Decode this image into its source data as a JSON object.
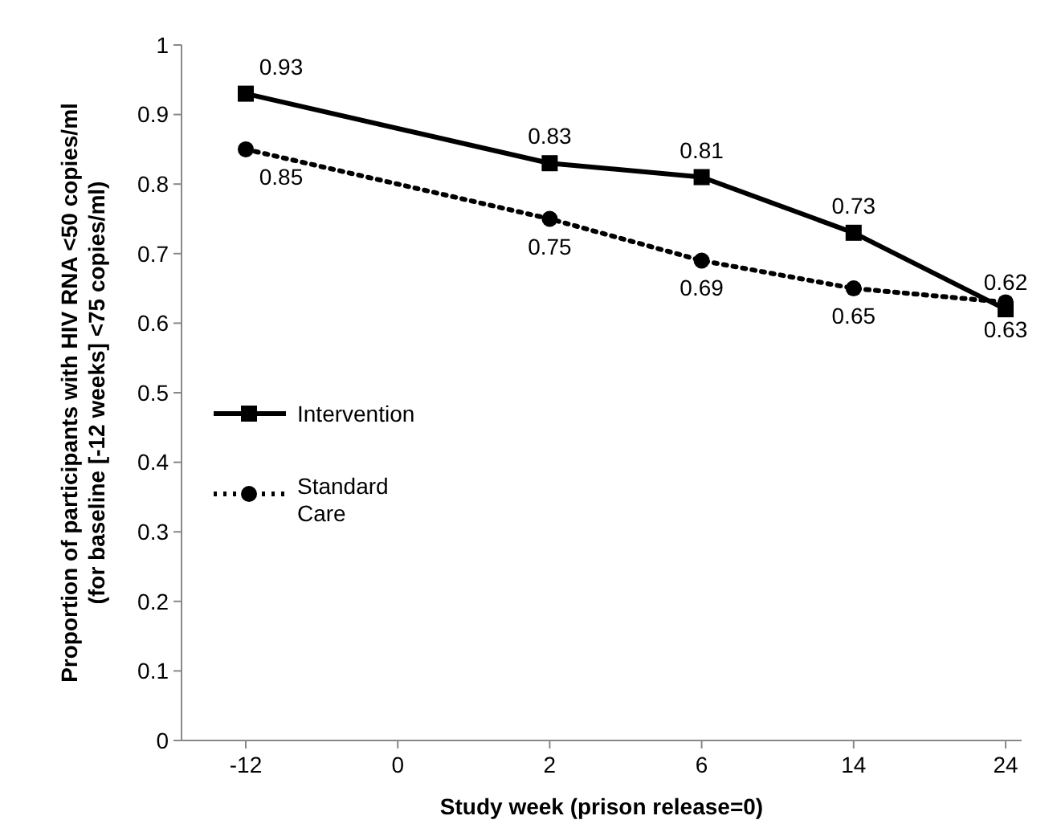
{
  "chart_data": {
    "type": "line",
    "xlabel": "Study week (prison release=0)",
    "ylabel": "Proportion of participants with HIV RNA <50 copies/ml (for baseline [-12 weeks] <75 copies/ml)",
    "categories": [
      "-12",
      "0",
      "2",
      "6",
      "14",
      "24"
    ],
    "series": [
      {
        "name": "Intervention",
        "color": "#000000",
        "values": [
          0.93,
          null,
          0.83,
          0.81,
          0.73,
          0.62
        ],
        "marker": "square",
        "line_style": "solid"
      },
      {
        "name": "Standard Care",
        "color": "#000000",
        "values": [
          0.85,
          null,
          0.75,
          0.69,
          0.65,
          0.63
        ],
        "marker": "circle",
        "line_style": "dotted"
      }
    ],
    "ylim": [
      0,
      1
    ],
    "yticks": [
      0,
      0.1,
      0.2,
      0.3,
      0.4,
      0.5,
      0.6,
      0.7,
      0.8,
      0.9,
      1
    ],
    "grid": false,
    "legend": "left",
    "data_labels": true
  }
}
